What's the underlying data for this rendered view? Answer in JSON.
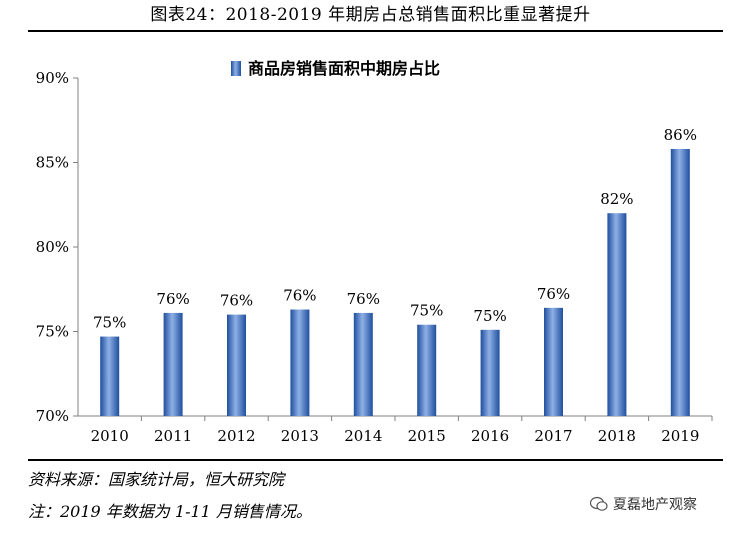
{
  "header": {
    "title": "图表24：2018-2019 年期房占总销售面积比重显著提升"
  },
  "chart_data": {
    "type": "bar",
    "title": "",
    "legend": [
      "商品房销售面积中期房占比"
    ],
    "legend_position": "top-center",
    "categories": [
      "2010",
      "2011",
      "2012",
      "2013",
      "2014",
      "2015",
      "2016",
      "2017",
      "2018",
      "2019"
    ],
    "series": [
      {
        "name": "商品房销售面积中期房占比",
        "values": [
          74.7,
          76.1,
          76.0,
          76.3,
          76.1,
          75.4,
          75.1,
          76.4,
          82.0,
          85.8
        ],
        "labels": [
          "75%",
          "76%",
          "76%",
          "76%",
          "76%",
          "75%",
          "75%",
          "76%",
          "82%",
          "86%"
        ]
      }
    ],
    "yticks": [
      "70%",
      "75%",
      "80%",
      "85%",
      "90%"
    ],
    "ylim": [
      70,
      90
    ],
    "grid": false,
    "bar_color": "#3a6fc0"
  },
  "footer": {
    "source": "资料来源：国家统计局，恒大研究院",
    "note": "注：2019 年数据为 1-11 月销售情况。",
    "watermark": "夏磊地产观察"
  }
}
